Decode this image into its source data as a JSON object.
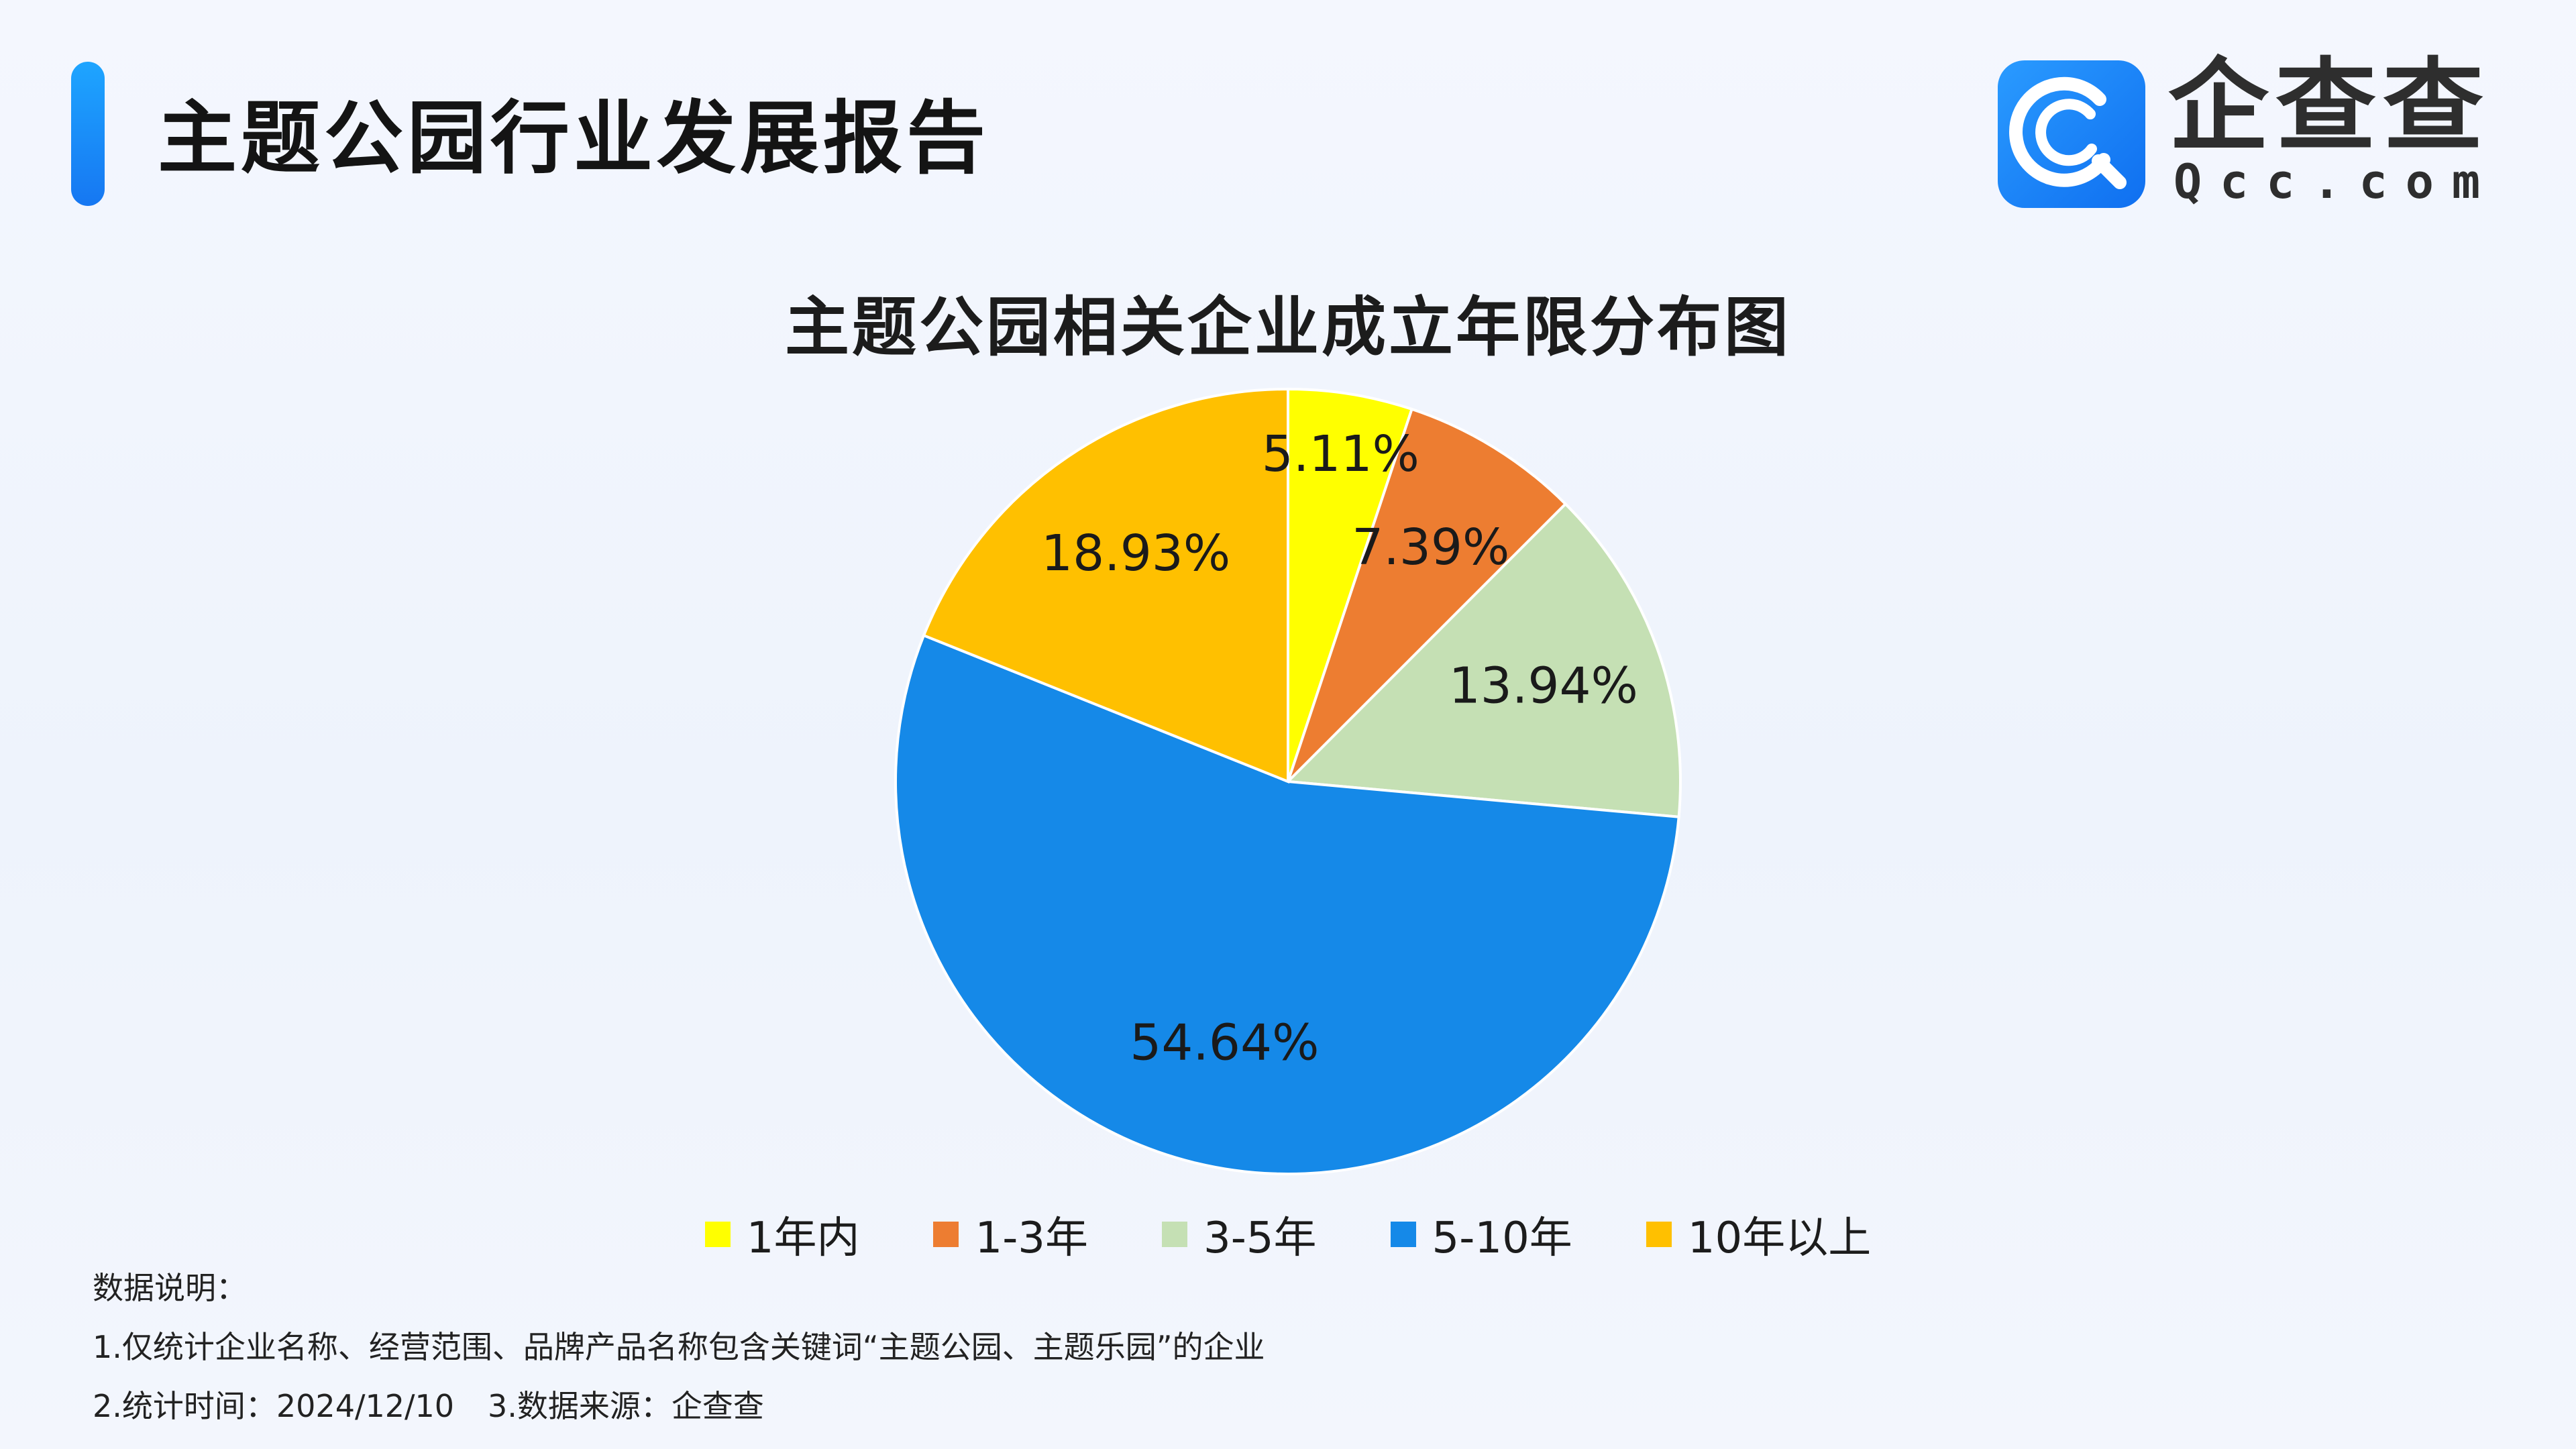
{
  "header": {
    "report_title": "主题公园行业发展报告"
  },
  "logo": {
    "name": "企查查",
    "domain": "Qcc.com"
  },
  "colors": {
    "accent": "#1a8cf7",
    "background": "#f2f6fd"
  },
  "chart_data": {
    "type": "pie",
    "title": "主题公园相关企业成立年限分布图",
    "categories": [
      "1年内",
      "1-3年",
      "3-5年",
      "5-10年",
      "10年以上"
    ],
    "values": [
      5.11,
      7.39,
      13.94,
      54.64,
      18.93
    ],
    "labels": [
      "5.11%",
      "7.39%",
      "13.94%",
      "54.64%",
      "18.93%"
    ],
    "colors": [
      "#ffff00",
      "#ed7d31",
      "#c5e0b4",
      "#1589e8",
      "#ffc000"
    ],
    "start_angle": "12 o'clock",
    "direction": "clockwise",
    "legend_position": "bottom"
  },
  "notes": {
    "heading": "数据说明：",
    "line1": "1.仅统计企业名称、经营范围、品牌产品名称包含关键词“主题公园、主题乐园”的企业",
    "line2_time": "2.统计时间：2024/12/10",
    "line2_source": "3.数据来源：企查查"
  }
}
